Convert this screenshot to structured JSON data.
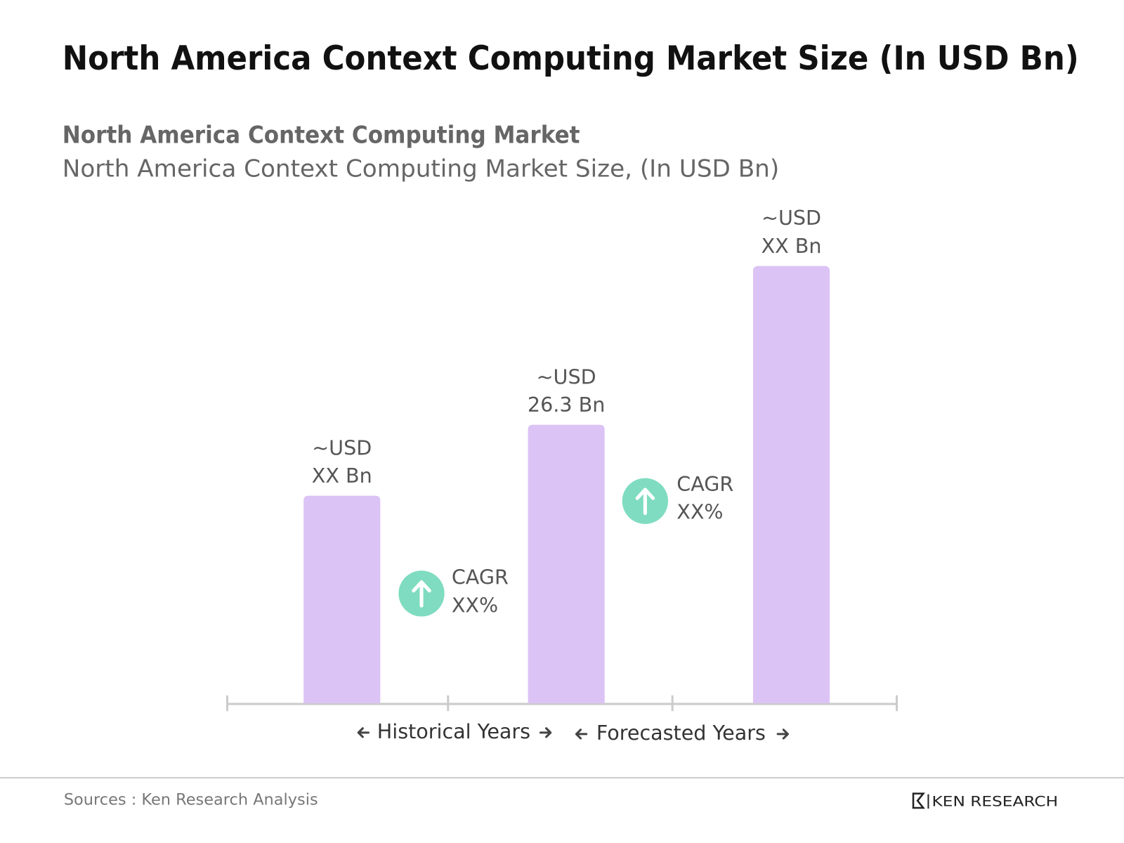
{
  "chart_data": {
    "type": "bar",
    "title": "North America Context Computing Market Size (In USD Bn)",
    "subtitle": "North America Context Computing Market",
    "subtitle2": "North America Context Computing Market Size, (In USD Bn)",
    "categories": [
      null,
      null,
      null
    ],
    "values": [
      19.6,
      26.3,
      41.3
    ],
    "value_labels": [
      [
        "~USD",
        "XX Bn"
      ],
      [
        "~USD",
        "26.3 Bn"
      ],
      [
        "~USD",
        "XX Bn"
      ]
    ],
    "color": "#dcc3f5",
    "cagr_labels": [
      [
        "CAGR",
        "XX%"
      ],
      [
        "CAGR",
        "XX%"
      ]
    ],
    "period_labels": [
      "Historical Years",
      "Forecasted Years"
    ],
    "source": "Sources : Ken Research Analysis",
    "brand": "KEN RESEARCH"
  }
}
